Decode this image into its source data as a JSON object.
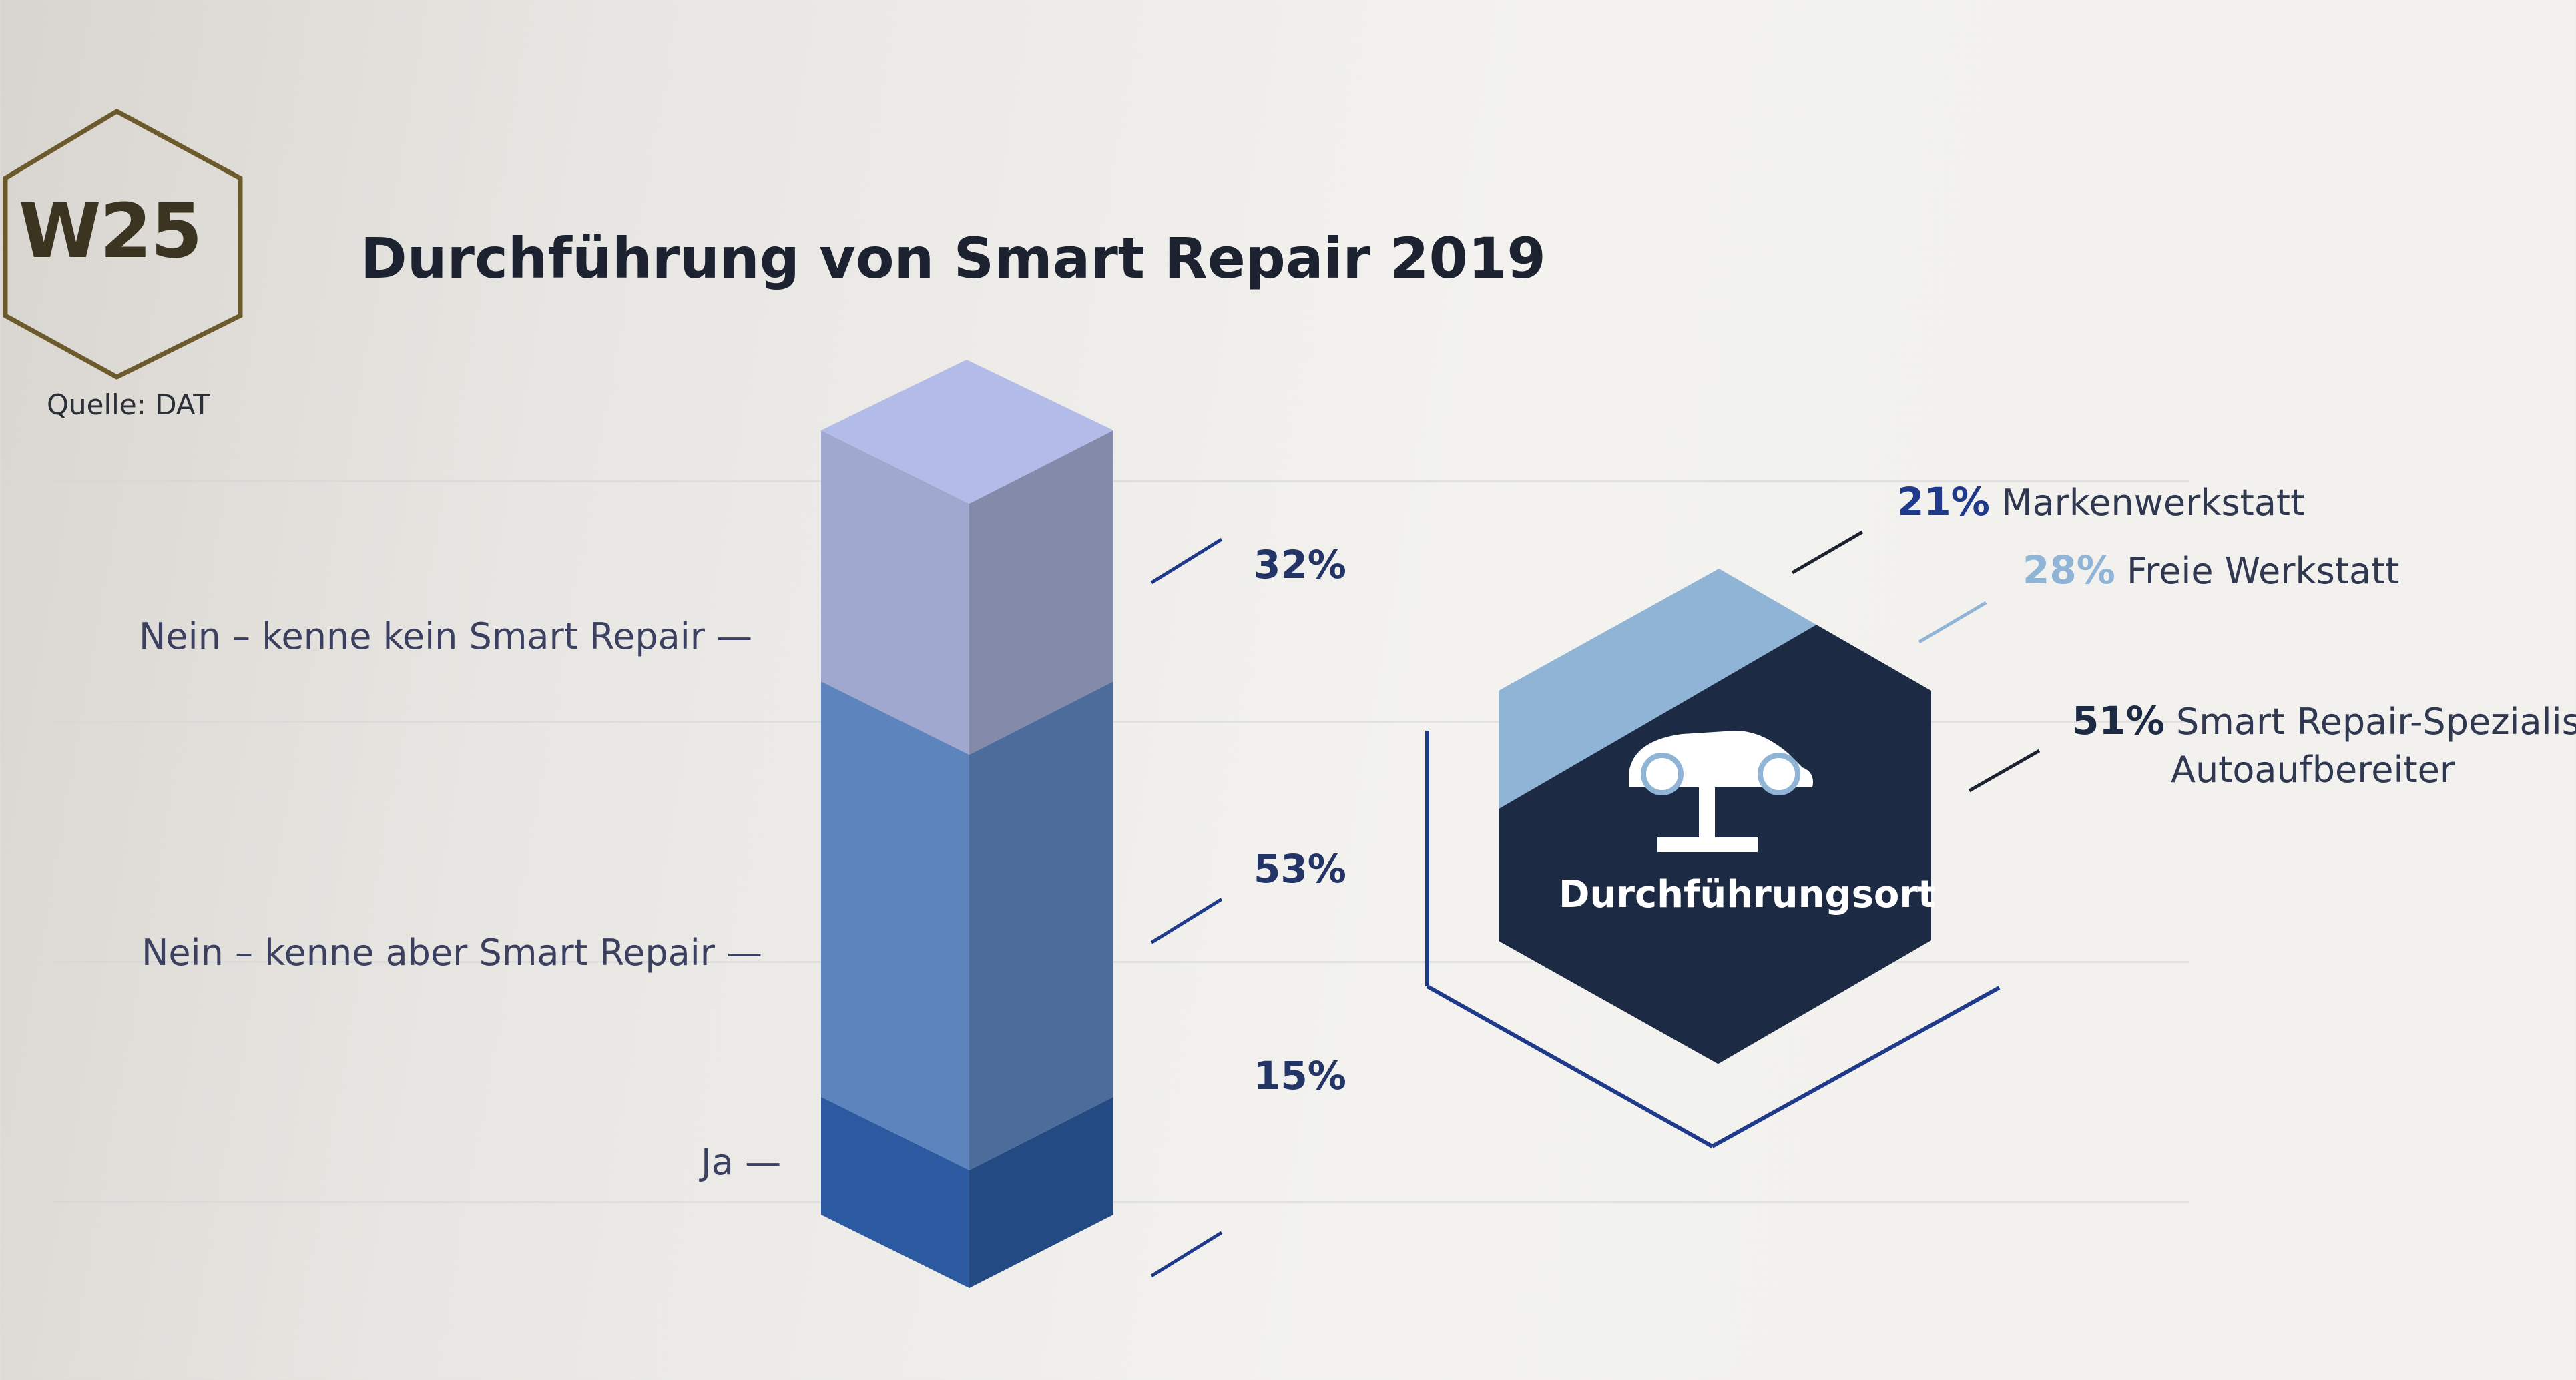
{
  "badge": {
    "code": "W25"
  },
  "title": "Durchführung von Smart Repair 2019",
  "source": "Quelle: DAT",
  "hub_label": "Durchführungsort",
  "colors": {
    "bar_top": "#a0a8cf",
    "bar_mid": "#5d84bd",
    "bar_bottom": "#2c5aa0",
    "navy": "#1f3a8a",
    "light_blue": "#8fb4d6",
    "dark": "#1d2a44",
    "badge_outline": "#6d5a2c"
  },
  "chart_data": [
    {
      "type": "bar",
      "title": "",
      "stacked": true,
      "categories": [
        "Ja",
        "Nein – kenne aber Smart Repair",
        "Nein – kenne kein Smart Repair"
      ],
      "series": [
        {
          "values": [
            15,
            53,
            32
          ]
        }
      ],
      "category_labels": [
        {
          "text": "Nein – kenne kein Smart Repair —"
        },
        {
          "text": "Nein – kenne aber Smart Repair —"
        },
        {
          "text": "Ja —"
        }
      ],
      "value_labels": [
        "32%",
        "53%",
        "15%"
      ],
      "ylim": [
        0,
        100
      ]
    },
    {
      "type": "pie",
      "title": "Durchführungsort",
      "labels": [
        "Markenwerkstatt",
        "Freie Werkstatt",
        "Smart Repair-Spezialist/ Autoaufbereiter"
      ],
      "values": [
        21,
        28,
        51
      ],
      "legend": [
        {
          "pct": "21%",
          "text": "Markenwerkstatt"
        },
        {
          "pct": "28%",
          "text": "Freie Werkstatt"
        },
        {
          "pct": "51%",
          "line1": "Smart Repair-Spezialist/",
          "line2": "Autoaufbereiter"
        }
      ]
    }
  ]
}
